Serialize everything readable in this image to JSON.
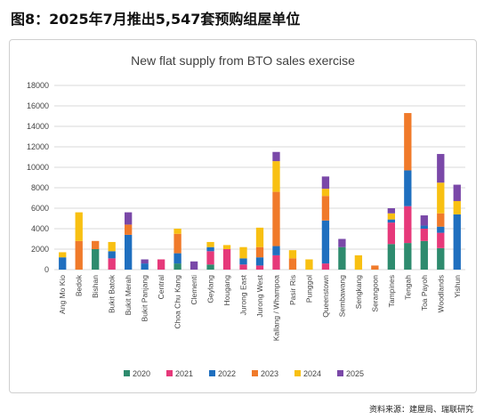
{
  "figure": {
    "title": "图8：2025年7月推出5,547套预购组屋单位",
    "source": "资料来源：建屋局、瑞联研究"
  },
  "colors": {
    "2020": "#2e8b6e",
    "2021": "#e6397a",
    "2022": "#1f6fbf",
    "2023": "#f07a2a",
    "2024": "#f8c012",
    "2025": "#7a48a8",
    "grid": "#d9d9d9",
    "axis_text": "#444444"
  },
  "chart_data": {
    "type": "bar",
    "stacked": true,
    "title": "New flat supply from BTO sales exercise",
    "xlabel": "",
    "ylabel": "",
    "ylim": [
      0,
      18000
    ],
    "yticks": [
      0,
      2000,
      4000,
      6000,
      8000,
      10000,
      12000,
      14000,
      16000,
      18000
    ],
    "ytick_labels": [
      "0",
      "2000",
      "4000",
      "6000",
      "8000",
      "10000",
      "12000",
      "14000",
      "16000",
      "18000"
    ],
    "grid": true,
    "legend_position": "bottom",
    "categories": [
      "Ang Mo Kio",
      "Bedok",
      "Bishan",
      "Bukit Batok",
      "Bukit Merah",
      "Bukit Panjang",
      "Central",
      "Choa Chu Kang",
      "Clementi",
      "Geylang",
      "Hougang",
      "Jurong East",
      "Jurong West",
      "Kallang / Whampoa",
      "Pasir Ris",
      "Punggol",
      "Queenstown",
      "Sembawang",
      "Sengkang",
      "Serangoon",
      "Tampines",
      "Tengah",
      "Toa Payoh",
      "Woodlands",
      "Yishun"
    ],
    "series": [
      {
        "name": "2020",
        "values": [
          0,
          0,
          2000,
          0,
          0,
          0,
          0,
          600,
          0,
          500,
          0,
          0,
          0,
          0,
          0,
          0,
          0,
          2200,
          0,
          0,
          2500,
          2600,
          2800,
          2100,
          0
        ]
      },
      {
        "name": "2021",
        "values": [
          0,
          0,
          0,
          1100,
          0,
          0,
          1000,
          0,
          0,
          1300,
          2000,
          500,
          400,
          1400,
          0,
          0,
          600,
          0,
          0,
          0,
          2100,
          3600,
          1200,
          1500,
          0
        ]
      },
      {
        "name": "2022",
        "values": [
          1200,
          0,
          0,
          700,
          3400,
          600,
          0,
          1000,
          0,
          400,
          0,
          600,
          800,
          900,
          0,
          0,
          4200,
          0,
          0,
          0,
          300,
          3500,
          300,
          600,
          5400
        ]
      },
      {
        "name": "2023",
        "values": [
          0,
          2800,
          800,
          0,
          1000,
          0,
          0,
          1900,
          0,
          0,
          0,
          0,
          1000,
          5300,
          1100,
          0,
          2400,
          0,
          0,
          400,
          0,
          5600,
          0,
          1300,
          0
        ]
      },
      {
        "name": "2024",
        "values": [
          500,
          2800,
          0,
          900,
          0,
          0,
          0,
          500,
          0,
          500,
          400,
          1100,
          1900,
          3000,
          800,
          1000,
          700,
          0,
          1400,
          0,
          600,
          0,
          0,
          3000,
          1300
        ]
      },
      {
        "name": "2025",
        "values": [
          0,
          0,
          0,
          0,
          1200,
          400,
          0,
          0,
          800,
          0,
          0,
          0,
          0,
          900,
          0,
          0,
          1200,
          800,
          0,
          0,
          500,
          0,
          1000,
          2800,
          1600
        ]
      }
    ]
  }
}
